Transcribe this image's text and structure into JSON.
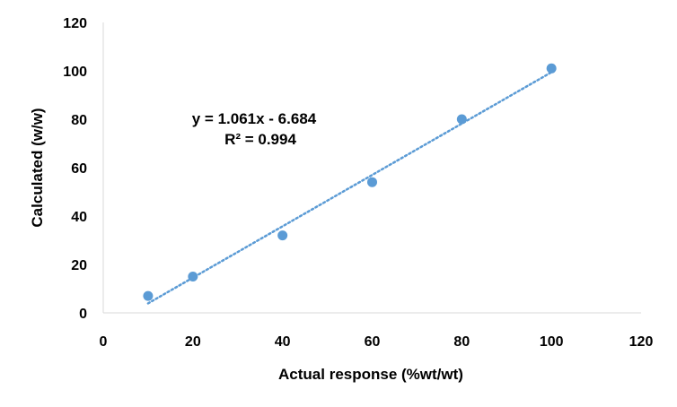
{
  "chart_data": {
    "type": "scatter",
    "title": "",
    "xlabel": "Actual response (%wt/wt)",
    "ylabel": "Calculated (w/w)",
    "xlim": [
      0,
      120
    ],
    "ylim": [
      0,
      120
    ],
    "xticks": [
      "0",
      "20",
      "40",
      "60",
      "80",
      "100",
      "120"
    ],
    "yticks": [
      "0",
      "20",
      "40",
      "60",
      "80",
      "100",
      "120"
    ],
    "grid": false,
    "legend": "none",
    "series": [
      {
        "x": [
          10,
          20,
          40,
          60,
          80,
          100
        ],
        "y": [
          7,
          15,
          32,
          54,
          80,
          101
        ],
        "color": "#5b9bd5"
      }
    ],
    "trendline": {
      "type": "linear",
      "slope": 1.061,
      "intercept": -6.684,
      "x_range": [
        10,
        100
      ],
      "style": "dotted",
      "color": "#5b9bd5",
      "equation_label": "y = 1.061x - 6.684",
      "r2_label": "R² = 0.994"
    }
  }
}
